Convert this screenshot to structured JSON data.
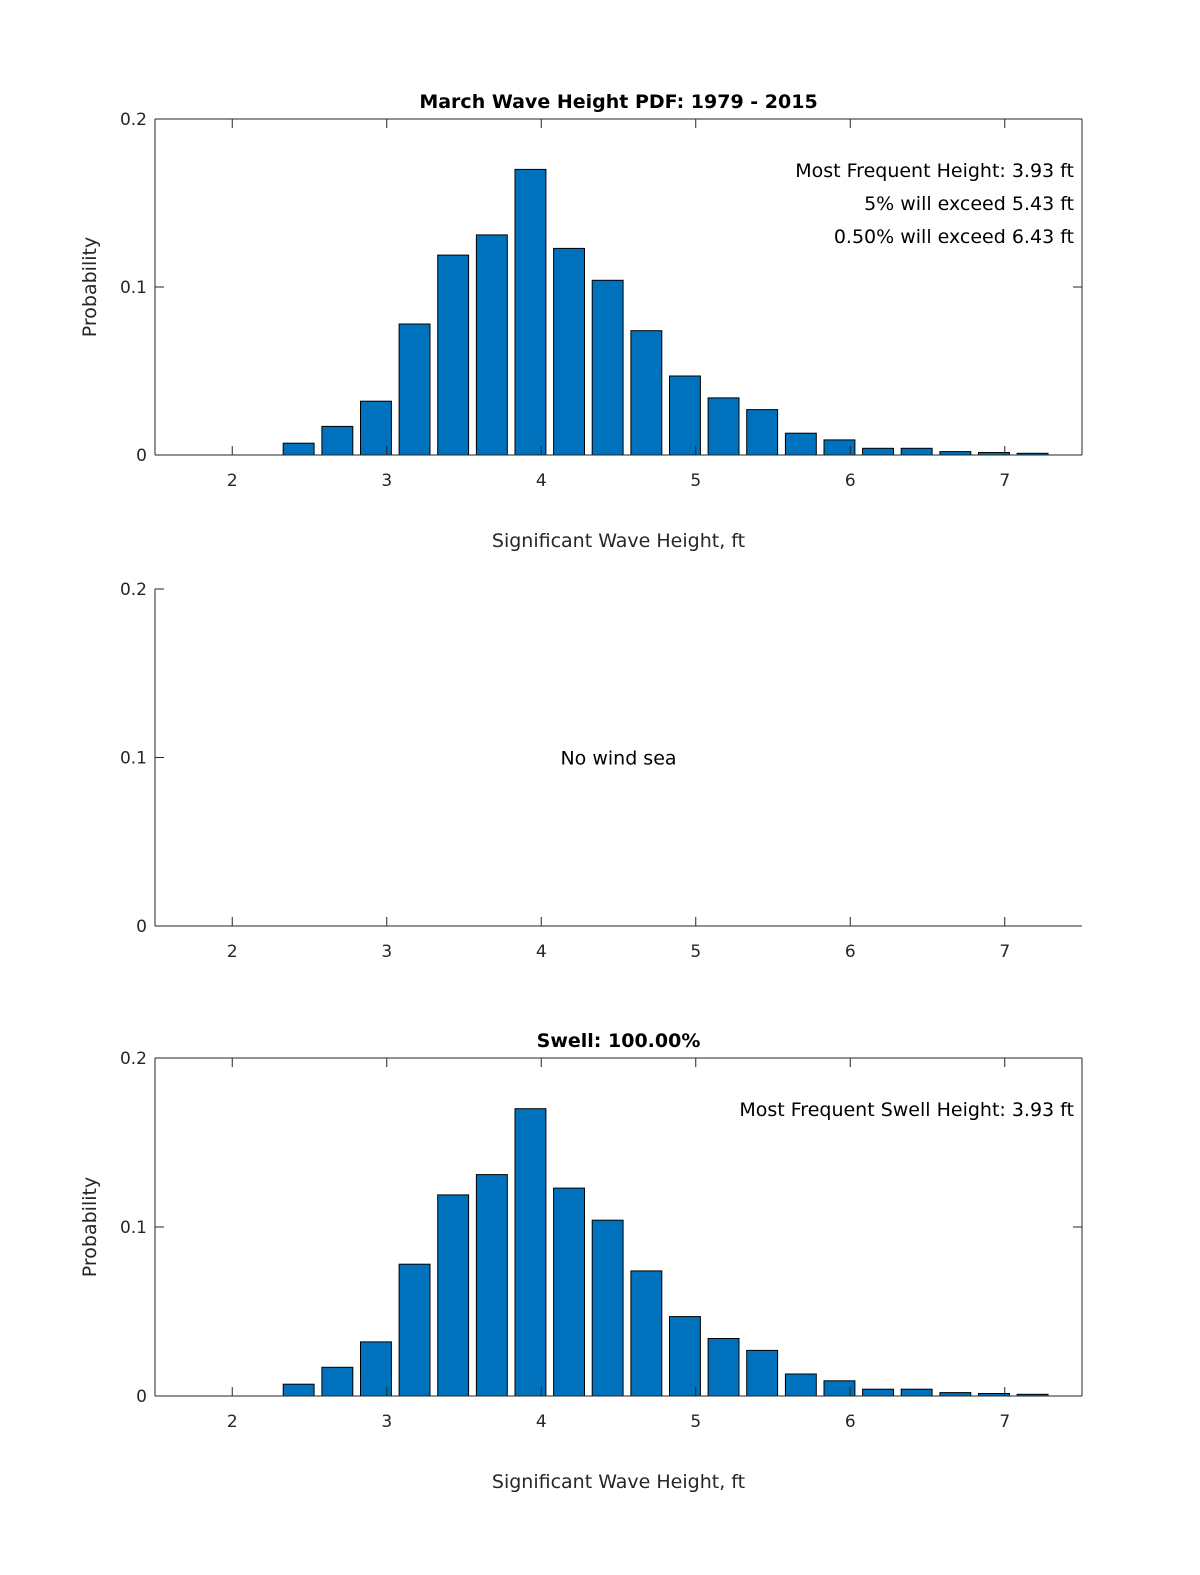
{
  "colors": {
    "bar": "#0072BD",
    "axis": "#262626",
    "text": "#000000"
  },
  "chart_data": [
    {
      "id": "total",
      "type": "bar",
      "title": "March Wave Height PDF: 1979 - 2015",
      "xlabel": "Significant Wave Height, ft",
      "ylabel": "Probability",
      "xlim": [
        1.5,
        7.5
      ],
      "ylim": [
        0,
        0.2
      ],
      "xticks": [
        2,
        3,
        4,
        5,
        6,
        7
      ],
      "xtick_labels": [
        "2",
        "3",
        "4",
        "5",
        "6",
        "7"
      ],
      "yticks": [
        0,
        0.1,
        0.2
      ],
      "ytick_labels": [
        "0",
        "0.1",
        "0.2"
      ],
      "bar_width": 0.2,
      "box": true,
      "x": [
        2.43,
        2.68,
        2.93,
        3.18,
        3.43,
        3.68,
        3.93,
        4.18,
        4.43,
        4.68,
        4.93,
        5.18,
        5.43,
        5.68,
        5.93,
        6.18,
        6.43,
        6.68,
        6.93,
        7.18
      ],
      "values": [
        0.007,
        0.017,
        0.032,
        0.078,
        0.119,
        0.131,
        0.17,
        0.123,
        0.104,
        0.074,
        0.047,
        0.034,
        0.027,
        0.013,
        0.009,
        0.004,
        0.004,
        0.002,
        0.0015,
        0.001
      ],
      "annotations": [
        "Most Frequent Height: 3.93 ft",
        "5% will exceed 5.43 ft",
        "0.50% will exceed 6.43 ft"
      ],
      "center_text": ""
    },
    {
      "id": "windsea",
      "type": "bar",
      "title": "",
      "xlabel": "",
      "ylabel": "",
      "xlim": [
        1.5,
        7.5
      ],
      "ylim": [
        0,
        0.2
      ],
      "xticks": [
        2,
        3,
        4,
        5,
        6,
        7
      ],
      "xtick_labels": [
        "2",
        "3",
        "4",
        "5",
        "6",
        "7"
      ],
      "yticks": [
        0,
        0.1,
        0.2
      ],
      "ytick_labels": [
        "0",
        "0.1",
        "0.2"
      ],
      "bar_width": 0.2,
      "box": false,
      "x": [],
      "values": [],
      "annotations": [],
      "center_text": "No wind sea"
    },
    {
      "id": "swell",
      "type": "bar",
      "title": "Swell: 100.00%",
      "xlabel": "Significant Wave Height, ft",
      "ylabel": "Probability",
      "xlim": [
        1.5,
        7.5
      ],
      "ylim": [
        0,
        0.2
      ],
      "xticks": [
        2,
        3,
        4,
        5,
        6,
        7
      ],
      "xtick_labels": [
        "2",
        "3",
        "4",
        "5",
        "6",
        "7"
      ],
      "yticks": [
        0,
        0.1,
        0.2
      ],
      "ytick_labels": [
        "0",
        "0.1",
        "0.2"
      ],
      "bar_width": 0.2,
      "box": true,
      "x": [
        2.43,
        2.68,
        2.93,
        3.18,
        3.43,
        3.68,
        3.93,
        4.18,
        4.43,
        4.68,
        4.93,
        5.18,
        5.43,
        5.68,
        5.93,
        6.18,
        6.43,
        6.68,
        6.93,
        7.18
      ],
      "values": [
        0.007,
        0.017,
        0.032,
        0.078,
        0.119,
        0.131,
        0.17,
        0.123,
        0.104,
        0.074,
        0.047,
        0.034,
        0.027,
        0.013,
        0.009,
        0.004,
        0.004,
        0.002,
        0.0015,
        0.001
      ],
      "annotations": [
        "Most Frequent Swell Height: 3.93 ft"
      ],
      "center_text": ""
    }
  ]
}
